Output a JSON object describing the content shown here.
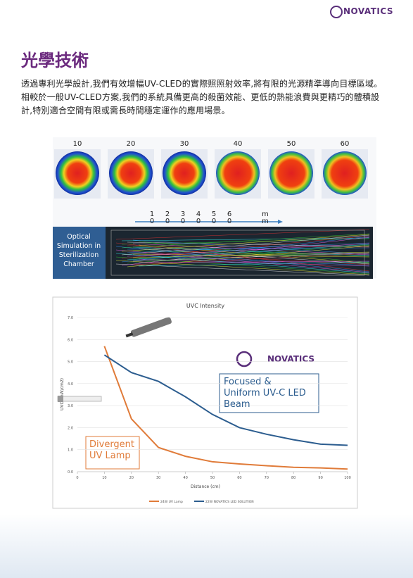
{
  "header": {
    "logo": "NOVATICS",
    "title": "光學技術"
  },
  "paragraph": "透過專利光學設計,我們有效增幅UV-CLED的實際照照射效率,將有限的光源精準導向目標區域。相較於一般UV-CLED方案,我們的系統具備更高的殺菌效能、更低的熱能浪費與更精巧的體積設計,特別適合空間有限或需長時間穩定運作的應用場景。",
  "figure": {
    "heatmap_labels": [
      "10",
      "20",
      "30",
      "40",
      "50",
      "60"
    ],
    "ruler_labels": [
      "10",
      "20",
      "30",
      "40",
      "50",
      "60",
      "mm"
    ],
    "simulation_label": "Optical Simulation in Sterilization Chamber"
  },
  "chart_data": {
    "type": "line",
    "title": "UVC Intensity",
    "logo": "NOVATICS",
    "x_label": "Distance (cm)",
    "y_label": "UVC (mW/cm2)",
    "x": [
      10,
      20,
      30,
      40,
      50,
      60,
      70,
      80,
      90,
      100
    ],
    "series": [
      {
        "name": "24W UV Lamp",
        "color": "#e07b39",
        "values": [
          5.7,
          2.4,
          1.1,
          0.7,
          0.45,
          0.35,
          0.27,
          0.2,
          0.17,
          0.12
        ]
      },
      {
        "name": "22W NOVATICS LED SOLUTION",
        "color": "#2c5d8f",
        "values": [
          5.3,
          4.5,
          4.1,
          3.4,
          2.6,
          2.0,
          1.7,
          1.45,
          1.25,
          1.2
        ]
      }
    ],
    "xlim": [
      0,
      100
    ],
    "xticks": [
      0,
      10,
      20,
      30,
      40,
      50,
      60,
      70,
      80,
      90,
      100
    ],
    "ylim": [
      0,
      7
    ],
    "yticks": [
      {
        "value": 0,
        "label": "0.0"
      },
      {
        "value": 1,
        "label": "1.0"
      },
      {
        "value": 2,
        "label": "2.0"
      },
      {
        "value": 3,
        "label": "3.0"
      },
      {
        "value": 4,
        "label": "4.0"
      },
      {
        "value": 5,
        "label": "5.0"
      },
      {
        "value": 6,
        "label": "6.0"
      },
      {
        "value": 7,
        "label": "7.0"
      }
    ],
    "annotations": [
      "Focused & Uniform UV-C LED Beam",
      "Divergent UV Lamp"
    ]
  }
}
